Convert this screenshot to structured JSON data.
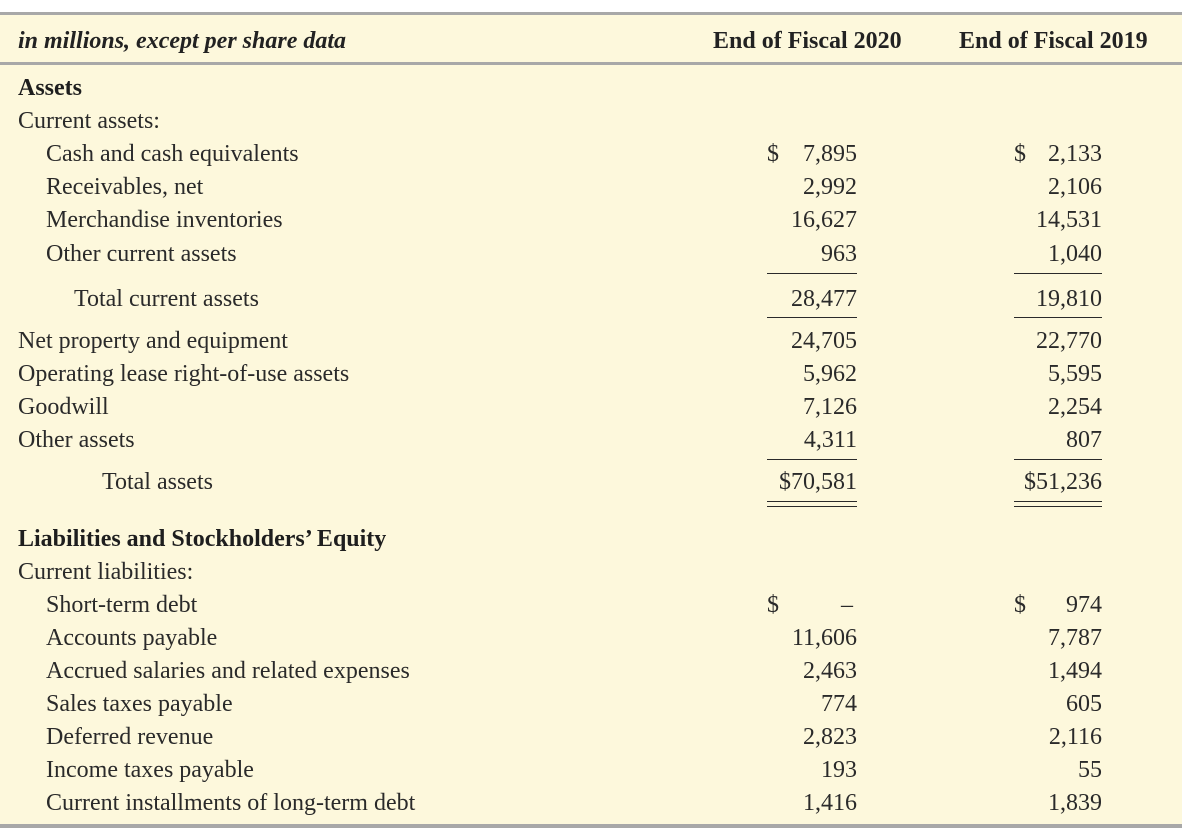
{
  "header": {
    "caption": "in millions, except per share data",
    "col1": "End of Fiscal 2020",
    "col2": "End of Fiscal 2019"
  },
  "assets": {
    "heading": "Assets",
    "current_heading": "Current assets:",
    "items": [
      {
        "label": "Cash and cash equivalents",
        "v2020": "7,895",
        "v2019": "2,133",
        "dollar": true
      },
      {
        "label": "Receivables, net",
        "v2020": "2,992",
        "v2019": "2,106"
      },
      {
        "label": "Merchandise inventories",
        "v2020": "16,627",
        "v2019": "14,531"
      },
      {
        "label": "Other current assets",
        "v2020": "963",
        "v2019": "1,040"
      }
    ],
    "total_current": {
      "label": "Total current assets",
      "v2020": "28,477",
      "v2019": "19,810"
    },
    "other_items": [
      {
        "label": "Net property and equipment",
        "v2020": "24,705",
        "v2019": "22,770"
      },
      {
        "label": "Operating lease right-of-use assets",
        "v2020": "5,962",
        "v2019": "5,595"
      },
      {
        "label": "Goodwill",
        "v2020": "7,126",
        "v2019": "2,254"
      },
      {
        "label": "Other assets",
        "v2020": "4,311",
        "v2019": "807"
      }
    ],
    "total": {
      "label": "Total assets",
      "v2020": "$70,581",
      "v2019": "$51,236"
    }
  },
  "liabilities": {
    "heading": "Liabilities and Stockholders’ Equity",
    "current_heading": "Current liabilities:",
    "items": [
      {
        "label": "Short-term debt",
        "v2020": "–",
        "v2019": "974",
        "dollar": true
      },
      {
        "label": "Accounts payable",
        "v2020": "11,606",
        "v2019": "7,787"
      },
      {
        "label": "Accrued salaries and related expenses",
        "v2020": "2,463",
        "v2019": "1,494"
      },
      {
        "label": "Sales taxes payable",
        "v2020": "774",
        "v2019": "605"
      },
      {
        "label": "Deferred revenue",
        "v2020": "2,823",
        "v2019": "2,116"
      },
      {
        "label": "Income taxes payable",
        "v2020": "193",
        "v2019": "55"
      },
      {
        "label": "Current installments of long-term debt",
        "v2020": "1,416",
        "v2019": "1,839"
      }
    ]
  },
  "currency_symbol": "$"
}
